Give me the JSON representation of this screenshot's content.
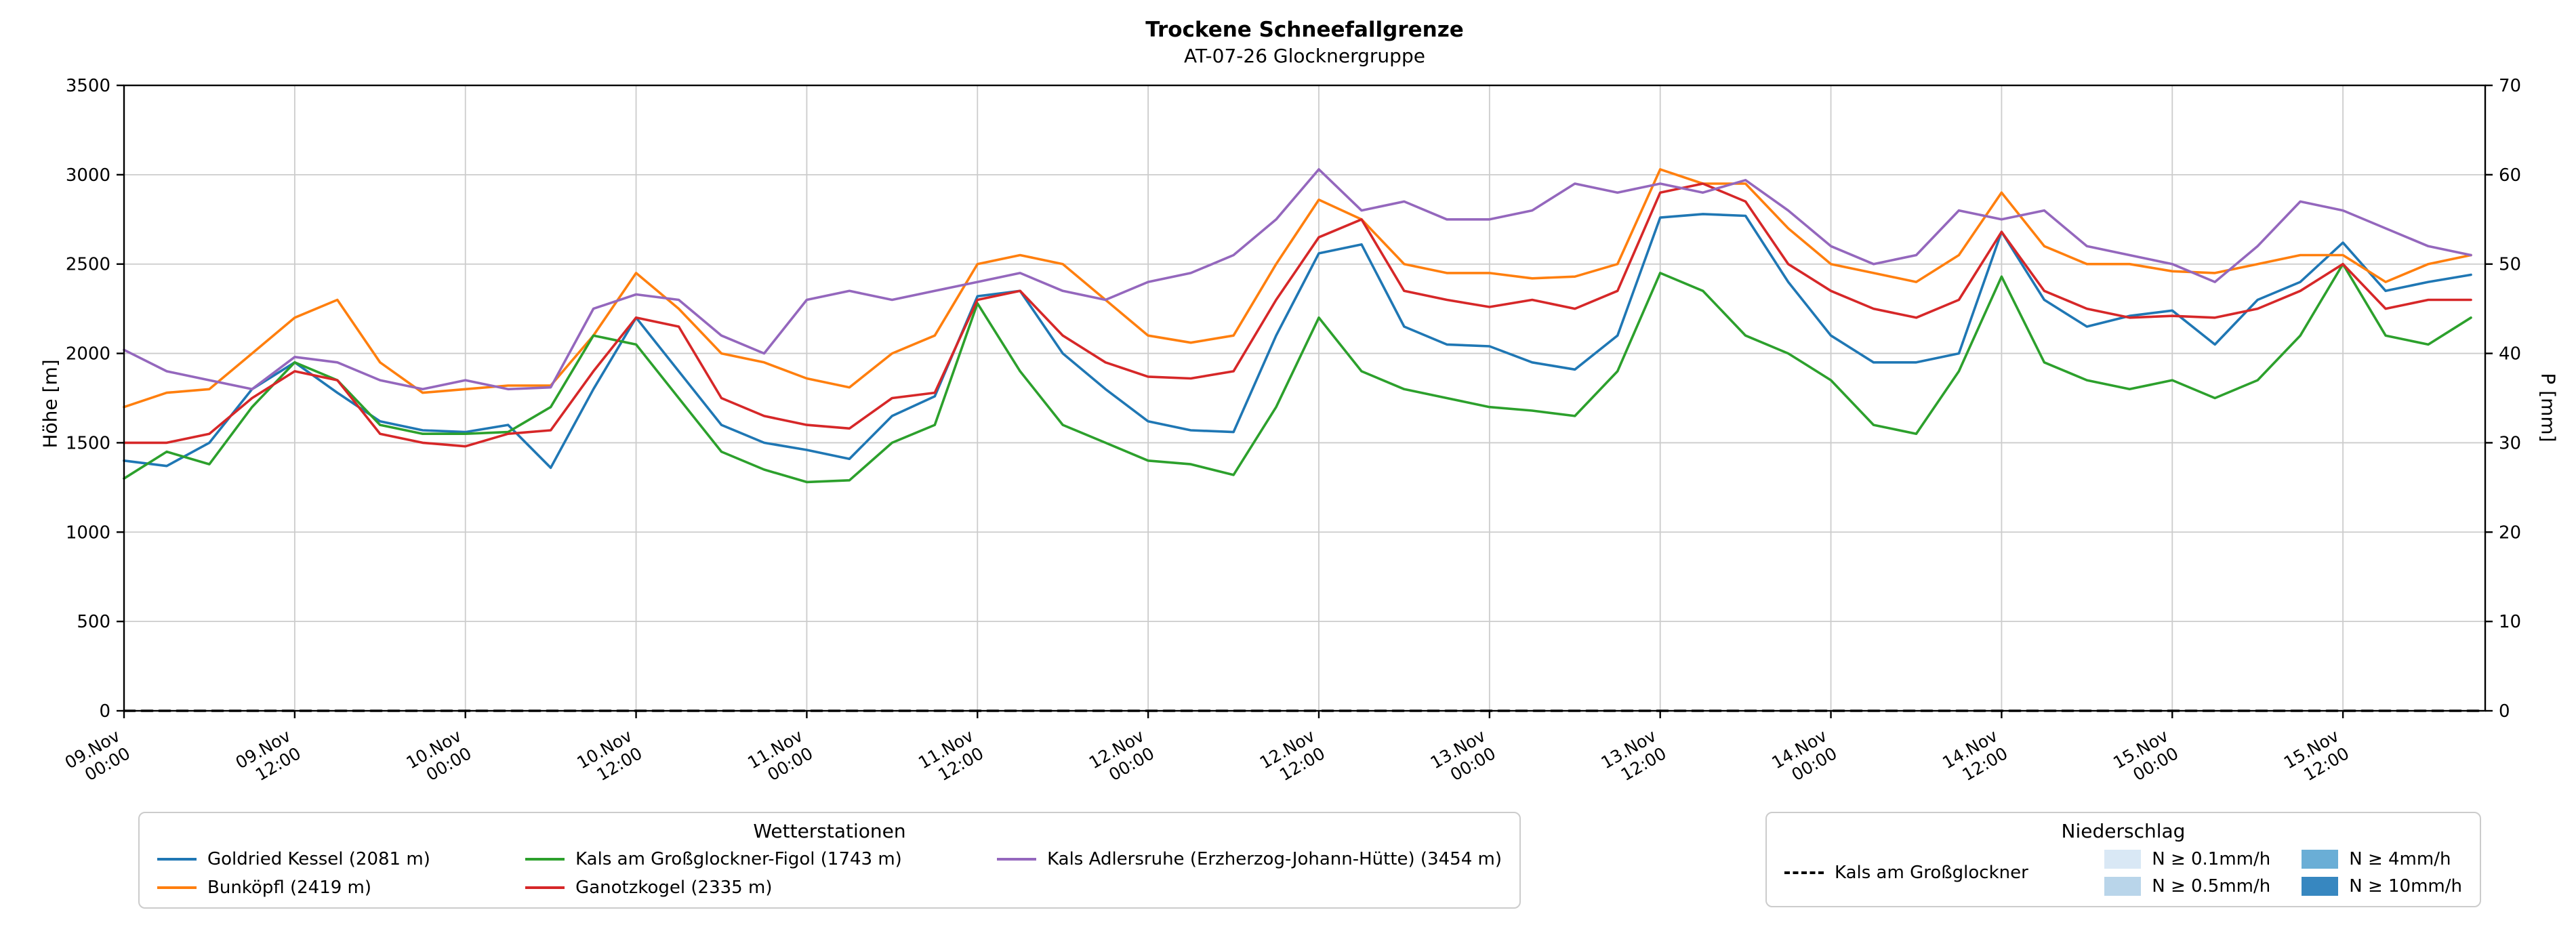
{
  "header": {
    "title": "Trockene Schneefallgrenze",
    "subtitle": "AT-07-26 Glocknergruppe"
  },
  "chart_data": {
    "type": "line",
    "title": "Trockene Schneefallgrenze",
    "subtitle": "AT-07-26 Glocknergruppe",
    "ylabel_left": "Höhe [m]",
    "ylabel_right": "P [mm]",
    "ylim_left": [
      0,
      3500
    ],
    "ylim_right": [
      0,
      70
    ],
    "yticks_left": [
      0,
      500,
      1000,
      1500,
      2000,
      2500,
      3000,
      3500
    ],
    "yticks_right": [
      0,
      10,
      20,
      30,
      40,
      50,
      60,
      70
    ],
    "grid": true,
    "x_hours_start": 0,
    "x_hours_end": 166,
    "x_step_hours": 3,
    "xticks": [
      {
        "hour": 0,
        "label": [
          "09.Nov",
          "00:00"
        ]
      },
      {
        "hour": 12,
        "label": [
          "09.Nov",
          "12:00"
        ]
      },
      {
        "hour": 24,
        "label": [
          "10.Nov",
          "00:00"
        ]
      },
      {
        "hour": 36,
        "label": [
          "10.Nov",
          "12:00"
        ]
      },
      {
        "hour": 48,
        "label": [
          "11.Nov",
          "00:00"
        ]
      },
      {
        "hour": 60,
        "label": [
          "11.Nov",
          "12:00"
        ]
      },
      {
        "hour": 72,
        "label": [
          "12.Nov",
          "00:00"
        ]
      },
      {
        "hour": 84,
        "label": [
          "12.Nov",
          "12:00"
        ]
      },
      {
        "hour": 96,
        "label": [
          "13.Nov",
          "00:00"
        ]
      },
      {
        "hour": 108,
        "label": [
          "13.Nov",
          "12:00"
        ]
      },
      {
        "hour": 120,
        "label": [
          "14.Nov",
          "00:00"
        ]
      },
      {
        "hour": 132,
        "label": [
          "14.Nov",
          "12:00"
        ]
      },
      {
        "hour": 144,
        "label": [
          "15.Nov",
          "00:00"
        ]
      },
      {
        "hour": 156,
        "label": [
          "15.Nov",
          "12:00"
        ]
      }
    ],
    "series": [
      {
        "name": "Goldried Kessel (2081 m)",
        "color": "#1f77b4",
        "axis": "left",
        "values": [
          1400,
          1370,
          1500,
          1800,
          1950,
          1780,
          1620,
          1570,
          1560,
          1600,
          1360,
          1800,
          2200,
          1900,
          1600,
          1500,
          1460,
          1410,
          1650,
          1760,
          2320,
          2350,
          2000,
          1800,
          1620,
          1570,
          1560,
          2100,
          2560,
          2610,
          2150,
          2050,
          2040,
          1950,
          1910,
          2100,
          2760,
          2780,
          2770,
          2400,
          2100,
          1950,
          1950,
          2000,
          2680,
          2300,
          2150,
          2210,
          2240,
          2050,
          2300,
          2400,
          2620,
          2350,
          2400,
          2440
        ]
      },
      {
        "name": "Bunköpfl (2419 m)",
        "color": "#ff7f0e",
        "axis": "left",
        "values": [
          1700,
          1780,
          1800,
          2000,
          2200,
          2300,
          1950,
          1780,
          1800,
          1820,
          1820,
          2100,
          2450,
          2250,
          2000,
          1950,
          1860,
          1810,
          2000,
          2100,
          2500,
          2550,
          2500,
          2300,
          2100,
          2060,
          2100,
          2500,
          2860,
          2750,
          2500,
          2450,
          2450,
          2420,
          2430,
          2500,
          3030,
          2950,
          2950,
          2700,
          2500,
          2450,
          2400,
          2550,
          2900,
          2600,
          2500,
          2500,
          2460,
          2450,
          2500,
          2550,
          2550,
          2400,
          2500,
          2550
        ]
      },
      {
        "name": "Kals am Großglockner-Figol (1743 m)",
        "color": "#2ca02c",
        "axis": "left",
        "values": [
          1300,
          1450,
          1380,
          1700,
          1950,
          1850,
          1600,
          1550,
          1550,
          1560,
          1700,
          2100,
          2050,
          1750,
          1450,
          1350,
          1280,
          1290,
          1500,
          1600,
          2280,
          1900,
          1600,
          1500,
          1400,
          1380,
          1320,
          1700,
          2200,
          1900,
          1800,
          1750,
          1700,
          1680,
          1650,
          1900,
          2450,
          2350,
          2100,
          2000,
          1850,
          1600,
          1550,
          1900,
          2430,
          1950,
          1850,
          1800,
          1850,
          1750,
          1850,
          2100,
          2500,
          2100,
          2050,
          2200
        ]
      },
      {
        "name": "Ganotzkogel (2335 m)",
        "color": "#d62728",
        "axis": "left",
        "values": [
          1500,
          1500,
          1550,
          1750,
          1900,
          1850,
          1550,
          1500,
          1480,
          1550,
          1570,
          1900,
          2200,
          2150,
          1750,
          1650,
          1600,
          1580,
          1750,
          1780,
          2300,
          2350,
          2100,
          1950,
          1870,
          1860,
          1900,
          2300,
          2650,
          2750,
          2350,
          2300,
          2260,
          2300,
          2250,
          2350,
          2900,
          2950,
          2850,
          2500,
          2350,
          2250,
          2200,
          2300,
          2680,
          2350,
          2250,
          2200,
          2210,
          2200,
          2250,
          2350,
          2500,
          2250,
          2300,
          2300
        ]
      },
      {
        "name": "Kals Adlersruhe (Erzherzog-Johann-Hütte) (3454 m)",
        "color": "#9467bd",
        "axis": "left",
        "values": [
          2020,
          1900,
          1850,
          1800,
          1980,
          1950,
          1850,
          1800,
          1850,
          1800,
          1810,
          2250,
          2330,
          2300,
          2100,
          2000,
          2300,
          2350,
          2300,
          2350,
          2400,
          2450,
          2350,
          2300,
          2400,
          2450,
          2550,
          2750,
          3030,
          2800,
          2850,
          2750,
          2750,
          2800,
          2950,
          2900,
          2950,
          2900,
          2970,
          2800,
          2600,
          2500,
          2550,
          2800,
          2750,
          2800,
          2600,
          2550,
          2500,
          2400,
          2600,
          2850,
          2800,
          2700,
          2600,
          2550
        ]
      },
      {
        "name": "Kals am Großglockner",
        "color": "#000000",
        "axis": "right",
        "dash": true,
        "constant": 0
      }
    ]
  },
  "legend_wetterstationen": {
    "title": "Wetterstationen"
  },
  "legend_niederschlag": {
    "title": "Niederschlag",
    "line_item": "Kals am Großglockner",
    "items": [
      {
        "label": "N ≥ 0.1mm/h",
        "color": "#d9e8f5"
      },
      {
        "label": "N ≥ 0.5mm/h",
        "color": "#b9d5ea"
      },
      {
        "label": "N ≥ 4mm/h",
        "color": "#6aaed6"
      },
      {
        "label": "N ≥ 10mm/h",
        "color": "#3787c0"
      }
    ]
  }
}
